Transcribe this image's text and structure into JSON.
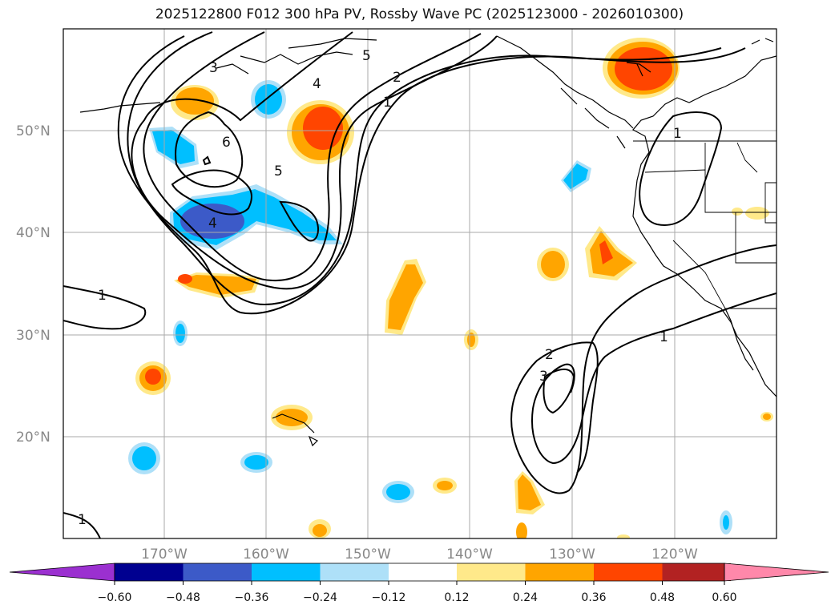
{
  "title": "2025122800 F012 300 hPa PV, Rossby Wave PC (2025123000 - 2026010300)",
  "map": {
    "lat_labels": [
      "50°N",
      "40°N",
      "30°N",
      "20°N"
    ],
    "lon_labels": [
      "170°W",
      "160°W",
      "150°W",
      "140°W",
      "130°W",
      "120°W"
    ],
    "contour_labels": [
      "1",
      "2",
      "3",
      "4",
      "5",
      "6"
    ]
  },
  "colorbar": {
    "ticks": [
      "−0.60",
      "−0.48",
      "−0.36",
      "−0.24",
      "−0.12",
      "0.12",
      "0.24",
      "0.36",
      "0.48",
      "0.60"
    ],
    "colors": [
      "#9b30d0",
      "#000090",
      "#3c5ac8",
      "#00bfff",
      "#aee0f8",
      "#ffffff",
      "#ffe98a",
      "#ffa500",
      "#ff4500",
      "#b22222",
      "#ff88aa"
    ]
  }
}
